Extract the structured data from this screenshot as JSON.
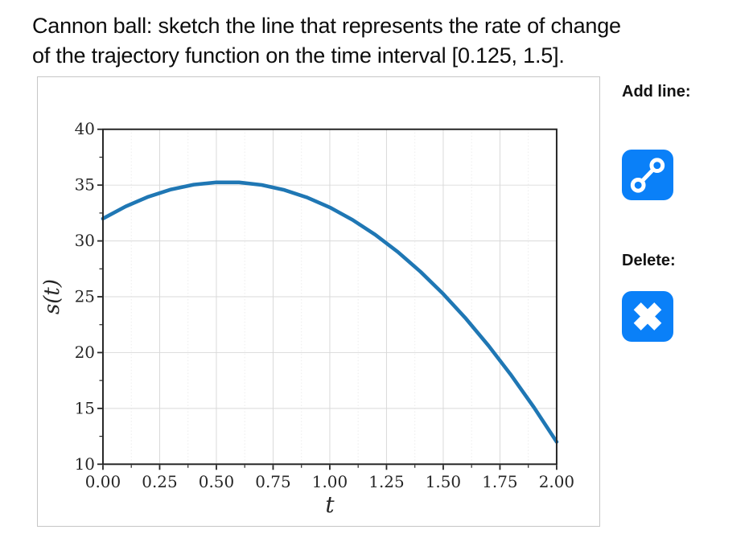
{
  "title": {
    "line1": "Cannon ball: sketch the line that represents the rate of change",
    "line2": "of the trajectory function on the time interval [0.125, 1.5]."
  },
  "controls": {
    "add_label": "Add line:",
    "delete_label": "Delete:"
  },
  "colors": {
    "accent_blue": "#0a80f8",
    "curve_blue": "#1f77b4",
    "spine": "#262626",
    "tick_text": "#262626",
    "grid_major": "#d9d9d9",
    "grid_minor": "#ececec",
    "panel_border": "#c6c6c6"
  },
  "chart_data": {
    "type": "line",
    "title": "",
    "xlabel": "t",
    "ylabel": "s(t)",
    "xlim": [
      0,
      2
    ],
    "ylim": [
      10,
      40
    ],
    "grid": true,
    "legend": "none",
    "x": [
      0,
      0.1,
      0.2,
      0.3,
      0.4,
      0.5,
      0.6,
      0.7,
      0.8,
      0.9,
      1.0,
      1.1,
      1.2,
      1.3,
      1.4,
      1.5,
      1.6,
      1.7,
      1.8,
      1.9,
      2.0
    ],
    "y": [
      32,
      33.09,
      33.96,
      34.61,
      35.04,
      35.25,
      35.24,
      35.01,
      34.56,
      33.89,
      33.0,
      31.89,
      30.56,
      29.01,
      27.24,
      25.25,
      23.04,
      20.61,
      17.96,
      15.09,
      12.0
    ],
    "x_ticks": [
      0,
      0.25,
      0.5,
      0.75,
      1.0,
      1.25,
      1.5,
      1.75,
      2.0
    ],
    "x_tick_labels": [
      "0.00",
      "0.25",
      "0.50",
      "0.75",
      "1.00",
      "1.25",
      "1.50",
      "1.75",
      "2.00"
    ],
    "y_ticks": [
      10,
      15,
      20,
      25,
      30,
      35,
      40
    ],
    "y_tick_labels": [
      "10",
      "15",
      "20",
      "25",
      "30",
      "35",
      "40"
    ],
    "x_minor_step": 0.125,
    "y_minor_step": 2.5
  }
}
